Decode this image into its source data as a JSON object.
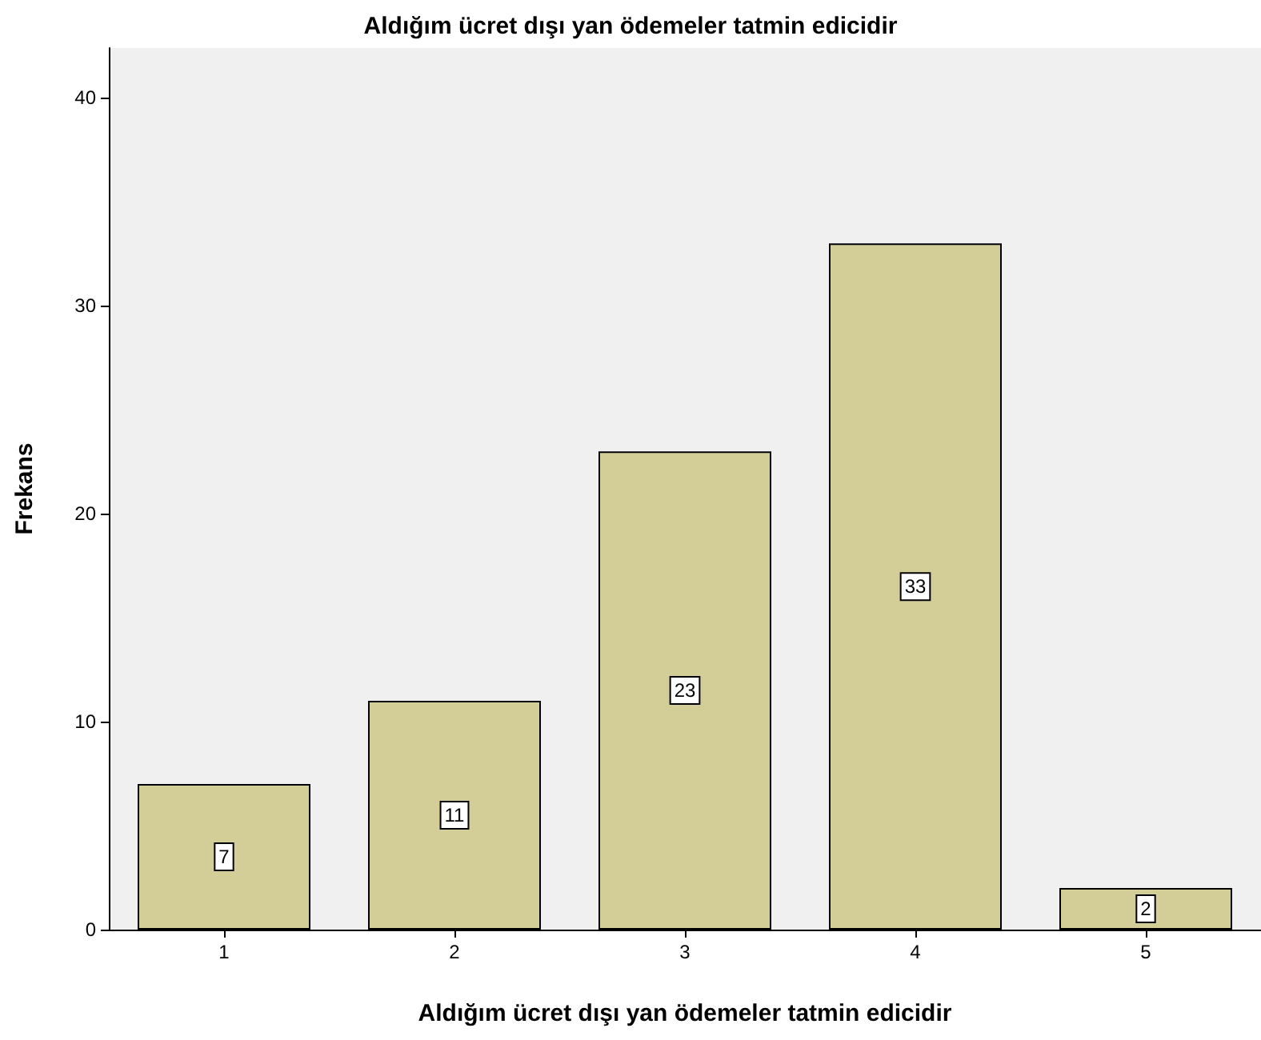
{
  "chart_data": {
    "type": "bar",
    "title": "Aldığım ücret dışı yan ödemeler tatmin edicidir",
    "xlabel": "Aldığım ücret dışı yan ödemeler tatmin edicidir",
    "ylabel": "Frekans",
    "categories": [
      "1",
      "2",
      "3",
      "4",
      "5"
    ],
    "values": [
      7,
      11,
      23,
      33,
      2
    ],
    "color": "#d3ce97",
    "ylim": [
      0,
      42.4
    ],
    "yticks": [
      0,
      10,
      20,
      30,
      40
    ],
    "grid": false,
    "data_labels": true
  }
}
